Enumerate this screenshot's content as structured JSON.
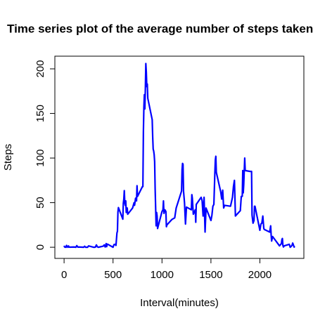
{
  "chart_data": {
    "type": "line",
    "title": "Time series plot of the average number of steps taken",
    "xlabel": "Interval(minutes)",
    "ylabel": "Steps",
    "x": [
      0,
      5,
      10,
      15,
      20,
      25,
      30,
      35,
      40,
      45,
      50,
      55,
      100,
      110,
      120,
      130,
      140,
      150,
      200,
      210,
      220,
      230,
      240,
      250,
      300,
      310,
      320,
      330,
      340,
      350,
      400,
      410,
      420,
      430,
      435,
      440,
      450,
      500,
      510,
      520,
      530,
      540,
      545,
      550,
      555,
      600,
      605,
      610,
      615,
      620,
      625,
      630,
      635,
      640,
      645,
      650,
      700,
      715,
      720,
      730,
      740,
      745,
      750,
      800,
      805,
      810,
      815,
      820,
      825,
      830,
      835,
      840,
      845,
      850,
      855,
      900,
      905,
      910,
      915,
      920,
      925,
      930,
      935,
      940,
      945,
      950,
      955,
      1000,
      1010,
      1015,
      1020,
      1030,
      1040,
      1045,
      1050,
      1100,
      1130,
      1145,
      1200,
      1205,
      1210,
      1215,
      1220,
      1230,
      1240,
      1250,
      1300,
      1305,
      1310,
      1320,
      1340,
      1345,
      1350,
      1400,
      1410,
      1420,
      1430,
      1440,
      1450,
      1500,
      1510,
      1520,
      1530,
      1540,
      1545,
      1550,
      1555,
      1600,
      1610,
      1620,
      1630,
      1640,
      1700,
      1710,
      1720,
      1730,
      1740,
      1745,
      1750,
      1800,
      1810,
      1820,
      1825,
      1830,
      1835,
      1845,
      1850,
      1900,
      1915,
      1920,
      1930,
      1940,
      1945,
      1950,
      2000,
      2010,
      2020,
      2030,
      2040,
      2045,
      2100,
      2110,
      2115,
      2120,
      2130,
      2200,
      2220,
      2225,
      2230,
      2235,
      2240,
      2250,
      2300,
      2310,
      2320,
      2330,
      2335,
      2340,
      2350,
      2355
    ],
    "series": [
      {
        "name": "Steps",
        "color": "#0000ff",
        "values": [
          1.7,
          0.3,
          0.1,
          0.2,
          0,
          2.1,
          0.5,
          0.9,
          0,
          1.5,
          0.3,
          0.1,
          0.3,
          0.2,
          0,
          1.8,
          0.2,
          0.3,
          0,
          1.1,
          0,
          0,
          0,
          1.5,
          0,
          0,
          0.2,
          2.6,
          0.5,
          0,
          1.2,
          2.6,
          0.3,
          4.1,
          0.7,
          3.5,
          3.1,
          0,
          3,
          3.3,
          2.1,
          16,
          18,
          39.5,
          44.5,
          31.5,
          49.3,
          53.8,
          63.5,
          50,
          47,
          52,
          39,
          44,
          44,
          37,
          44,
          50,
          47,
          55,
          52,
          69,
          57,
          68,
          68,
          129,
          157,
          171,
          155,
          177,
          206,
          196,
          180,
          183,
          167,
          143,
          124,
          110,
          108,
          104,
          96,
          66,
          45,
          24,
          39,
          35,
          21,
          40,
          42,
          52,
          38,
          42,
          40,
          23,
          25,
          31,
          33,
          44,
          63,
          87,
          94,
          93,
          63,
          50,
          26,
          45,
          42,
          59,
          55,
          37,
          42,
          28,
          48,
          56,
          52,
          35,
          56,
          17,
          44,
          30,
          36,
          46,
          48,
          83,
          98,
          102,
          84,
          62,
          54,
          64,
          44,
          47,
          46,
          51,
          56,
          68,
          75,
          56,
          35,
          41,
          57,
          57,
          86,
          61,
          70,
          100,
          86,
          85,
          85,
          36,
          27,
          30,
          46,
          46,
          19,
          26,
          27,
          35,
          21,
          20,
          17,
          24,
          14,
          7,
          12,
          1.6,
          4.1,
          8.7,
          9.8,
          2.2,
          0.3,
          1.6,
          3.3,
          0,
          1,
          2.6,
          4.7,
          3.3,
          0.2,
          1.1
        ]
      }
    ],
    "xlim": [
      -94.2,
      2449.2
    ],
    "ylim": [
      -12.5,
      214.2
    ],
    "xticks": [
      0,
      500,
      1000,
      1500,
      2000
    ],
    "yticks": [
      0,
      50,
      100,
      150,
      200
    ]
  }
}
